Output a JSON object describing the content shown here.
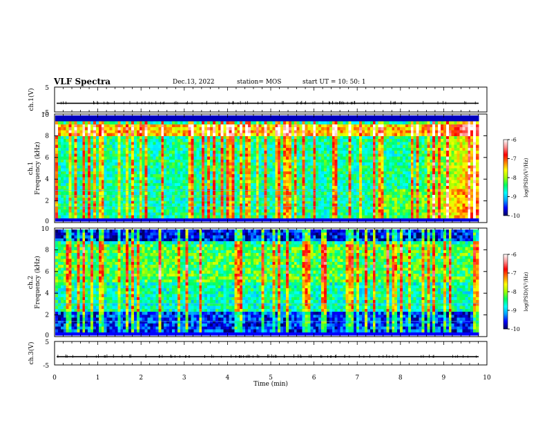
{
  "header": {
    "title": "VLF Spectra",
    "date": "Dec.13, 2022",
    "station": "station= MOS",
    "start_ut": "start  UT  =   10: 50: 1"
  },
  "chart_data": {
    "type": "heatmap",
    "xlabel": "Time  (min)",
    "xlim": [
      0,
      10
    ],
    "x_ticks": [
      "0",
      "1",
      "2",
      "3",
      "4",
      "5",
      "6",
      "7",
      "8",
      "9",
      "10"
    ],
    "panels": [
      {
        "name": "ch1-voltage",
        "ylabel": "ch.1(V)",
        "ylim": [
          -5,
          5
        ],
        "y_ticks": [
          "5",
          "-5"
        ],
        "kind": "line",
        "level": -1.5
      },
      {
        "name": "ch1-spectrogram",
        "ylabel_line1": "ch.1",
        "ylabel_line2": "Frequency  (kHz)",
        "ylim": [
          0,
          10
        ],
        "y_ticks": [
          "10",
          "8",
          "6",
          "4",
          "2",
          "0"
        ],
        "kind": "spectrogram"
      },
      {
        "name": "ch2-spectrogram",
        "ylabel_line1": "ch.2",
        "ylabel_line2": "Frequency  (kHz)",
        "ylim": [
          0,
          10
        ],
        "y_ticks": [
          "10",
          "8",
          "6",
          "4",
          "2",
          "0"
        ],
        "kind": "spectrogram"
      },
      {
        "name": "ch3-voltage",
        "ylabel": "ch.3(V)",
        "ylim": [
          -5,
          5
        ],
        "y_ticks": [
          "5",
          "-5"
        ],
        "kind": "line",
        "level": -1.5
      }
    ],
    "colorbar": {
      "label": "log(PSD)(V²/Hz)",
      "range": [
        -10,
        -6
      ],
      "ticks": [
        "-6",
        "-7",
        "-8",
        "-9",
        "-10"
      ],
      "colors": [
        "#000060",
        "#0000ff",
        "#00a0ff",
        "#00ffff",
        "#00ff60",
        "#a0ff00",
        "#ffff00",
        "#ff8000",
        "#ff0000",
        "#ff9090",
        "#ffffff"
      ]
    }
  }
}
